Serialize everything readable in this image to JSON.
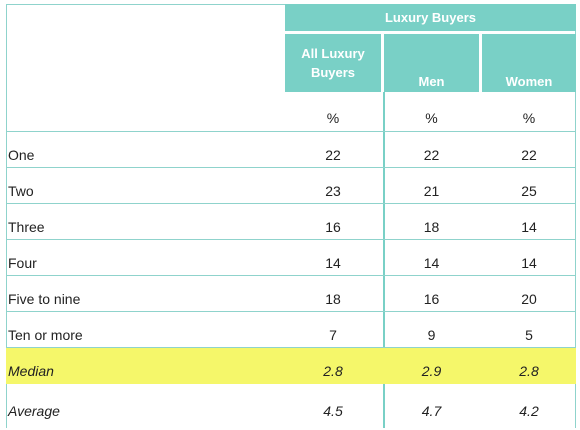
{
  "table": {
    "group_header": "Luxury Buyers",
    "columns": [
      "All Luxury Buyers",
      "Men",
      "Women"
    ],
    "unit_row": [
      "%",
      "%",
      "%"
    ],
    "rows": [
      {
        "label": "One",
        "values": [
          "22",
          "22",
          "22"
        ]
      },
      {
        "label": "Two",
        "values": [
          "23",
          "21",
          "25"
        ]
      },
      {
        "label": "Three",
        "values": [
          "16",
          "18",
          "14"
        ]
      },
      {
        "label": "Four",
        "values": [
          "14",
          "14",
          "14"
        ]
      },
      {
        "label": "Five to nine",
        "values": [
          "18",
          "16",
          "20"
        ]
      },
      {
        "label": "Ten or more",
        "values": [
          "7",
          "9",
          "5"
        ]
      },
      {
        "label": "Median",
        "values": [
          "2.8",
          "2.9",
          "2.8"
        ]
      },
      {
        "label": "Average",
        "values": [
          "4.5",
          "4.7",
          "4.2"
        ]
      }
    ],
    "colors": {
      "header_bg": "#79d0c6",
      "highlight_bg": "#f5f76a"
    }
  }
}
